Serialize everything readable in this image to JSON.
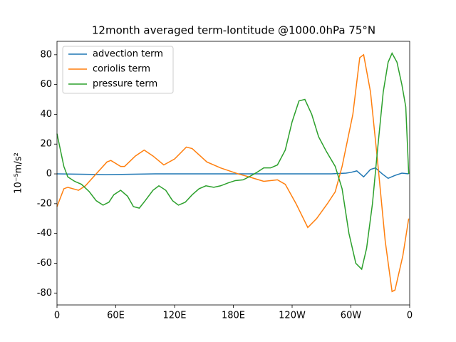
{
  "chart_data": {
    "type": "line",
    "title": "12month averaged term-lontitude @1000.0hPa 75°N",
    "y_label": "10⁻⁵m/s²",
    "xlim": [
      0,
      360
    ],
    "ylim": [
      -88,
      89
    ],
    "xticks": [
      0,
      {
        "value": 60,
        "label": "60E"
      },
      {
        "value": 120,
        "label": "120E"
      },
      {
        "value": 180,
        "label": "180E"
      },
      {
        "value": 240,
        "label": "120W"
      },
      {
        "value": 300,
        "label": "60W"
      },
      {
        "value": 360,
        "label": "0"
      }
    ],
    "yticks": [
      -80,
      -60,
      -40,
      -20,
      0,
      20,
      40,
      60,
      80
    ],
    "legend": "upper left",
    "series": [
      {
        "name": "advection term",
        "color": "#1f77b4",
        "x": [
          0,
          50,
          100,
          200,
          280,
          295,
          300,
          306,
          313,
          320,
          325,
          332,
          338,
          345,
          352,
          359
        ],
        "values": [
          0,
          -0.5,
          0,
          0,
          0,
          0.5,
          1,
          2,
          -2,
          3,
          4,
          0,
          -3,
          -1,
          0.5,
          0
        ]
      },
      {
        "name": "coriolis term",
        "color": "#ff7f0e",
        "x": [
          0,
          7,
          11,
          22,
          29,
          40,
          51,
          55,
          65,
          69,
          80,
          89,
          98,
          109,
          120,
          132,
          138,
          153,
          167,
          185,
          196,
          211,
          225,
          233,
          244,
          256,
          265,
          276,
          284,
          291,
          302,
          309,
          313,
          320,
          327,
          335,
          342,
          345,
          353,
          359
        ],
        "values": [
          -22,
          -10,
          -9,
          -11,
          -8,
          0,
          8,
          9,
          5,
          5,
          12,
          16,
          12,
          6,
          10,
          18,
          17,
          8,
          4,
          0,
          -2,
          -5,
          -4,
          -7,
          -20,
          -36,
          -30,
          -20,
          -12,
          5,
          40,
          78,
          80,
          55,
          10,
          -45,
          -79,
          -78,
          -55,
          -30
        ]
      },
      {
        "name": "pressure term",
        "color": "#2ca02c",
        "x": [
          0,
          7,
          11,
          18,
          25,
          33,
          40,
          47,
          53,
          58,
          65,
          72,
          78,
          84,
          90,
          98,
          104,
          111,
          118,
          124,
          131,
          138,
          145,
          152,
          160,
          167,
          175,
          182,
          190,
          196,
          204,
          211,
          218,
          225,
          233,
          240,
          247,
          253,
          260,
          267,
          275,
          284,
          291,
          298,
          305,
          311,
          316,
          322,
          327,
          333,
          338,
          342,
          347,
          352,
          356,
          359
        ],
        "values": [
          27,
          5,
          -2,
          -5,
          -7,
          -12,
          -18,
          -21,
          -19,
          -14,
          -11,
          -15,
          -22,
          -23,
          -18,
          -11,
          -8,
          -11,
          -18,
          -21,
          -19,
          -14,
          -10,
          -8,
          -9,
          -8,
          -6,
          -4.5,
          -4,
          -2,
          1,
          4,
          4,
          6,
          16,
          35,
          49,
          50,
          40,
          25,
          15,
          5,
          -10,
          -40,
          -60,
          -64,
          -50,
          -20,
          15,
          55,
          75,
          81,
          75,
          60,
          45,
          0
        ]
      }
    ]
  }
}
